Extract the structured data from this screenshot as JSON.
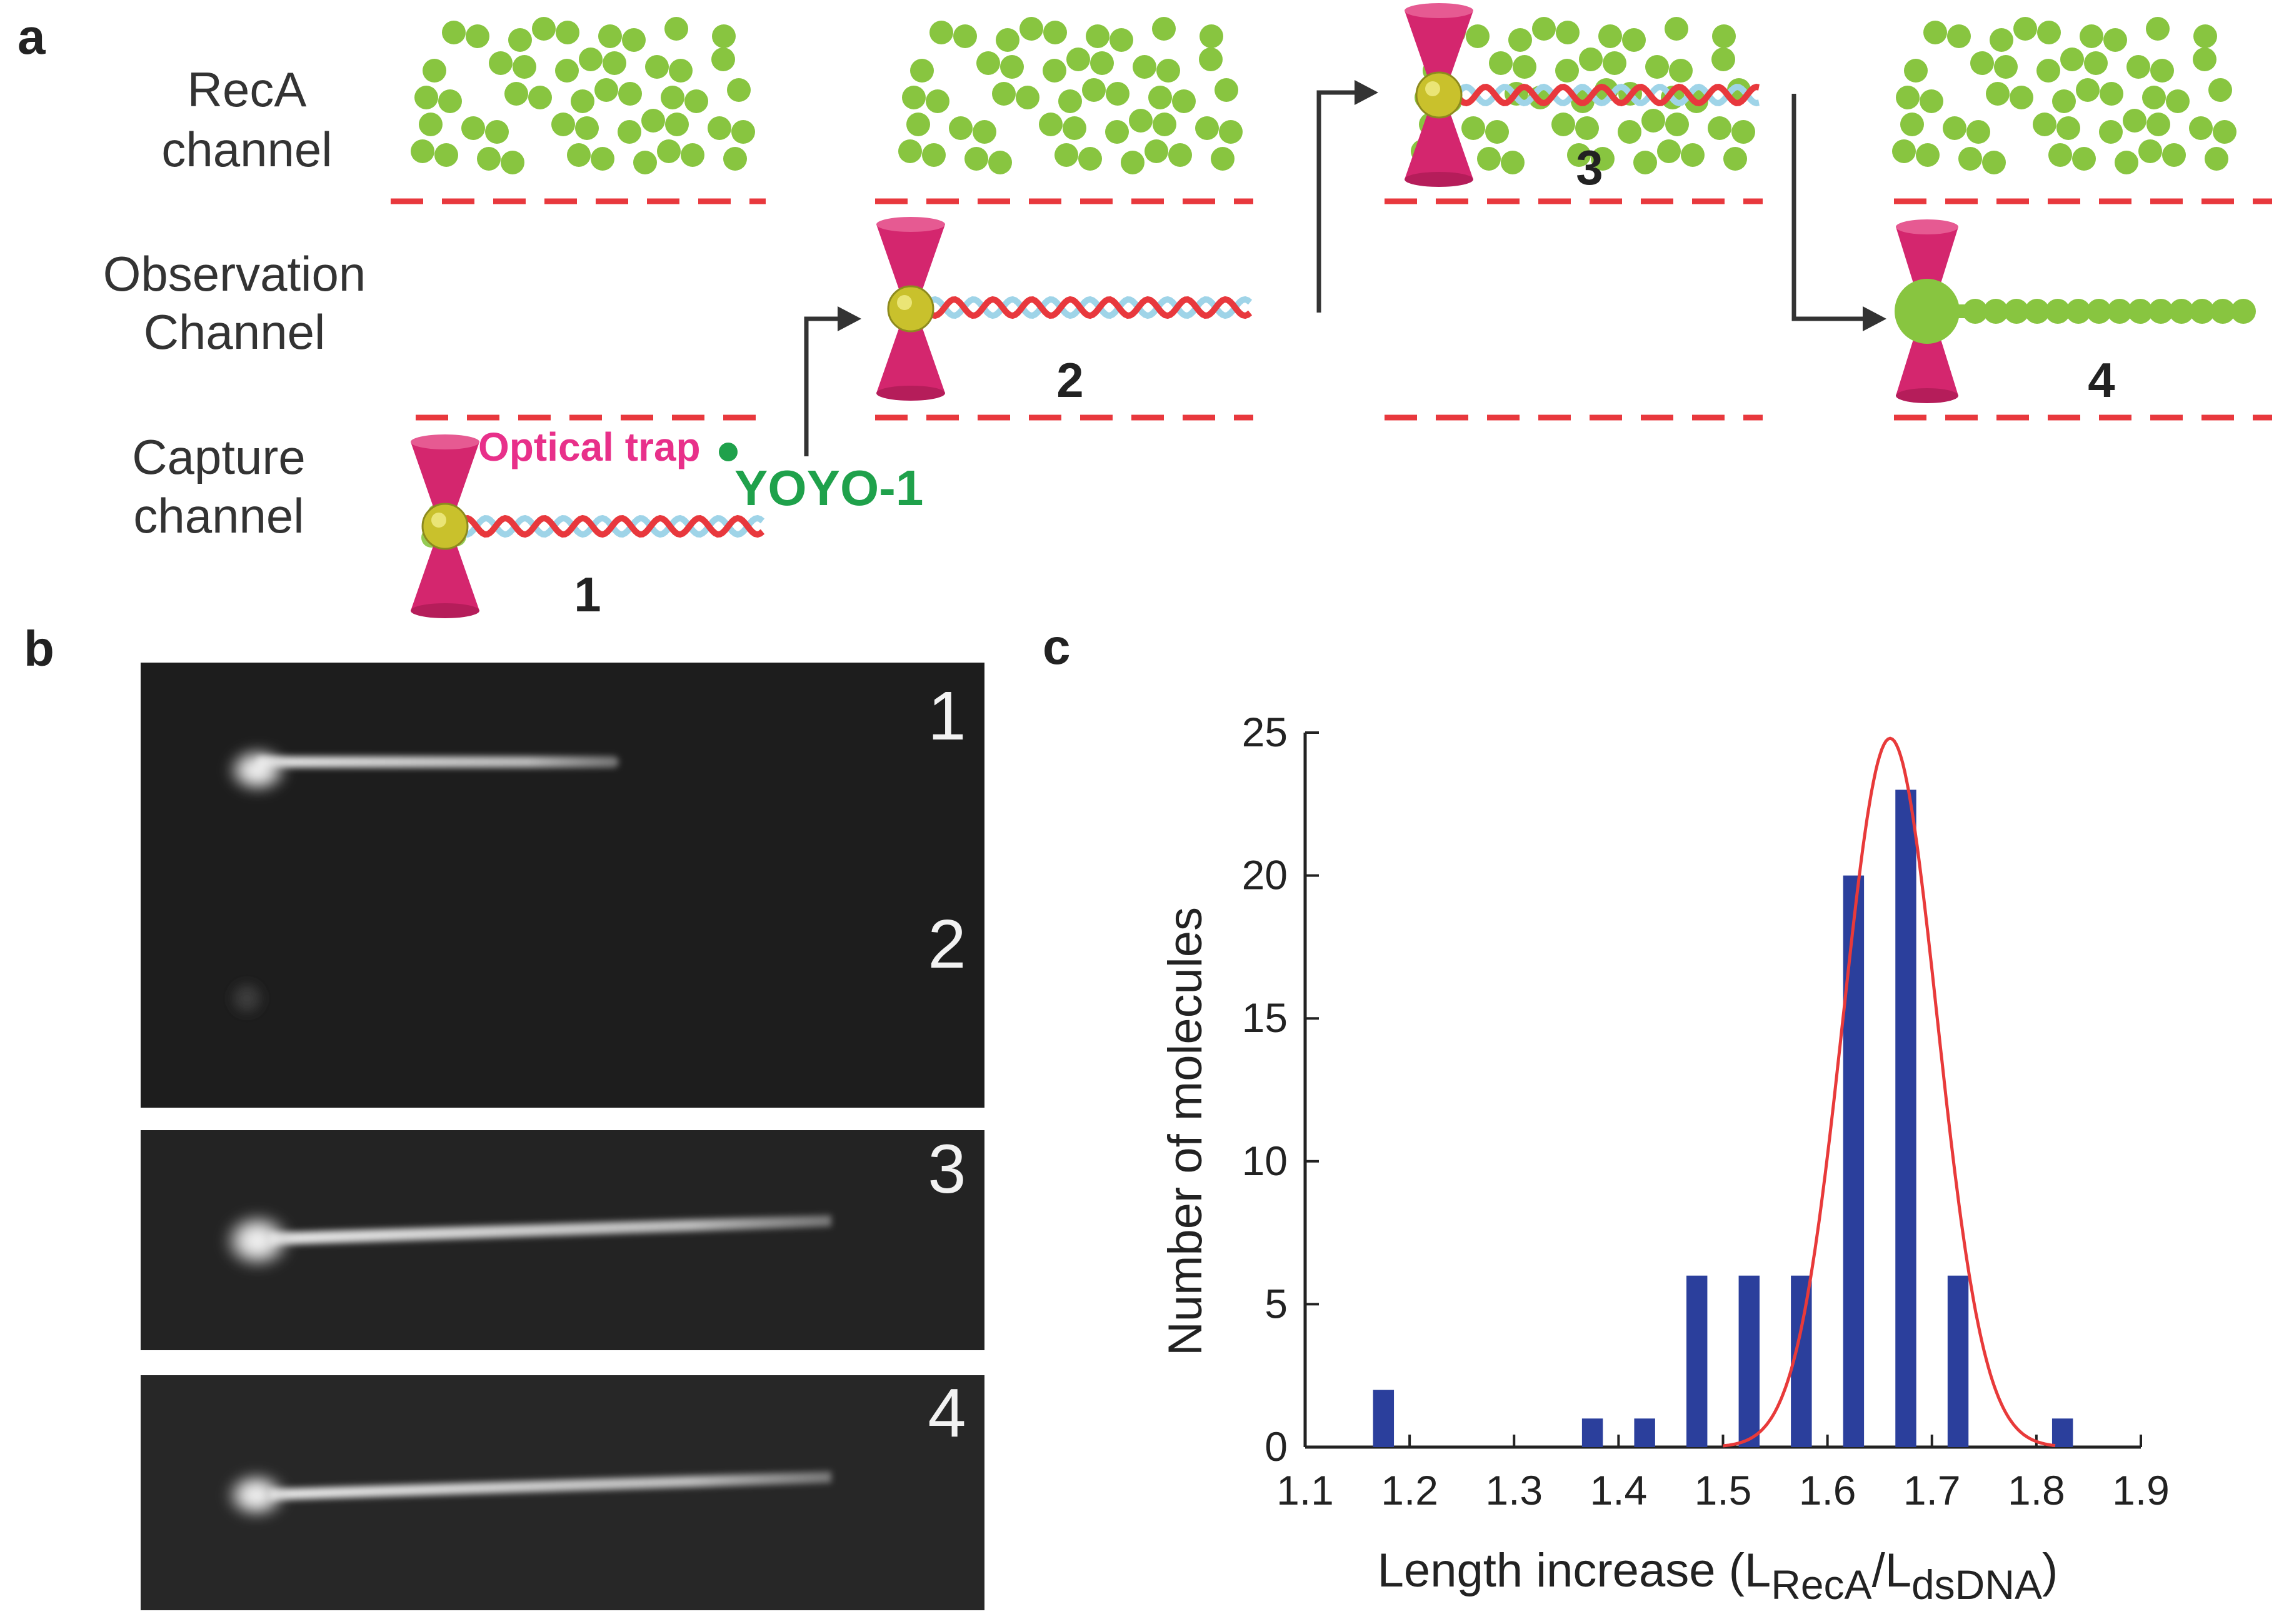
{
  "panel_a": {
    "letter": "a",
    "channel_labels": [
      [
        "RecA",
        "channel"
      ],
      [
        "Observation",
        "Channel"
      ],
      [
        "Capture",
        "channel"
      ]
    ],
    "optical_trap_label": "Optical trap",
    "yoyo_label": "YOYO-1",
    "steps": [
      "1",
      "2",
      "3",
      "4"
    ],
    "colors": {
      "recA": "#88c540",
      "trap": "#d4266e",
      "bead": "#c9c12c",
      "dna_strand_a": "#e8383d",
      "dna_strand_b": "#9fd4e8",
      "boundary": "#e8383d",
      "yoyo_text": "#1fa14b",
      "trap_text": "#e8308a"
    }
  },
  "panel_b": {
    "letter": "b",
    "frames": [
      "1",
      "2",
      "3",
      "4"
    ]
  },
  "panel_c": {
    "letter": "c",
    "chart_data": {
      "type": "bar",
      "xlabel_main": "Length increase (L",
      "xlabel_sub1": "RecA",
      "xlabel_mid": "/L",
      "xlabel_sub2": "dsDNA",
      "xlabel_end": ")",
      "ylabel": "Number of molecules",
      "xlim": [
        1.1,
        1.9
      ],
      "ylim": [
        0,
        25
      ],
      "xticks": [
        "1.1",
        "1.2",
        "1.3",
        "1.4",
        "1.5",
        "1.6",
        "1.7",
        "1.8",
        "1.9"
      ],
      "yticks": [
        "0",
        "5",
        "10",
        "15",
        "20",
        "25"
      ],
      "bars": [
        {
          "x": 1.175,
          "value": 2
        },
        {
          "x": 1.375,
          "value": 1
        },
        {
          "x": 1.425,
          "value": 1
        },
        {
          "x": 1.475,
          "value": 6
        },
        {
          "x": 1.525,
          "value": 6
        },
        {
          "x": 1.575,
          "value": 6
        },
        {
          "x": 1.625,
          "value": 20
        },
        {
          "x": 1.675,
          "value": 23
        },
        {
          "x": 1.725,
          "value": 6
        },
        {
          "x": 1.825,
          "value": 1
        }
      ],
      "fit": {
        "type": "gaussian",
        "mean": 1.66,
        "sigma": 0.045,
        "peak": 24.8
      },
      "bar_color": "#2b3f9c",
      "fit_color": "#e83a3a",
      "grid": false
    }
  }
}
